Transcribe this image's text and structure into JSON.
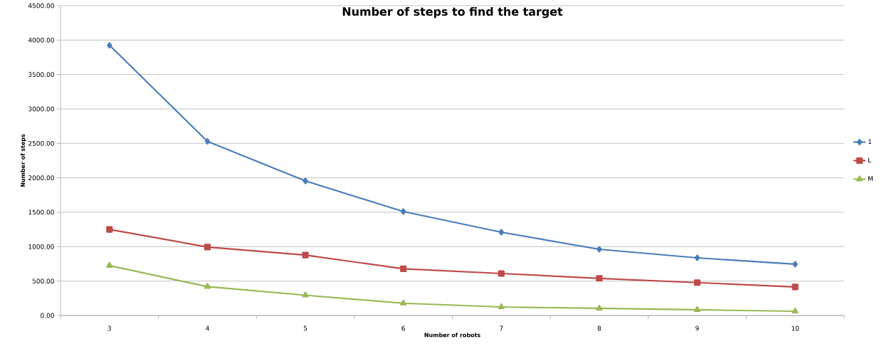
{
  "chart_data": {
    "type": "line",
    "title": "Number of steps to find the target",
    "xlabel": "Number of robots",
    "ylabel": "Number of steps",
    "categories": [
      "3",
      "4",
      "5",
      "6",
      "7",
      "8",
      "9",
      "10"
    ],
    "series": [
      {
        "name": "1",
        "color": "#4a7ebb",
        "marker": "diamond",
        "values": [
          3925,
          2530,
          1955,
          1510,
          1210,
          962,
          838,
          745
        ]
      },
      {
        "name": "L",
        "color": "#be4b48",
        "marker": "square",
        "values": [
          1250,
          995,
          878,
          678,
          610,
          540,
          478,
          415
        ]
      },
      {
        "name": "M",
        "color": "#98b954",
        "marker": "triangle",
        "values": [
          726,
          420,
          295,
          178,
          124,
          105,
          83,
          62
        ]
      }
    ],
    "ylim": [
      0,
      4500
    ],
    "yticks": [
      {
        "value": 0,
        "label": "0.00"
      },
      {
        "value": 500,
        "label": "500.00"
      },
      {
        "value": 1000,
        "label": "1000.00"
      },
      {
        "value": 1500,
        "label": "1500.00"
      },
      {
        "value": 2000,
        "label": "2000.00"
      },
      {
        "value": 2500,
        "label": "2500.00"
      },
      {
        "value": 3000,
        "label": "3000.00"
      },
      {
        "value": 3500,
        "label": "3500.00"
      },
      {
        "value": 4000,
        "label": "4000.00"
      },
      {
        "value": 4500,
        "label": "4500.00"
      }
    ],
    "grid": "y",
    "legend": "right",
    "line_style": "solid"
  }
}
